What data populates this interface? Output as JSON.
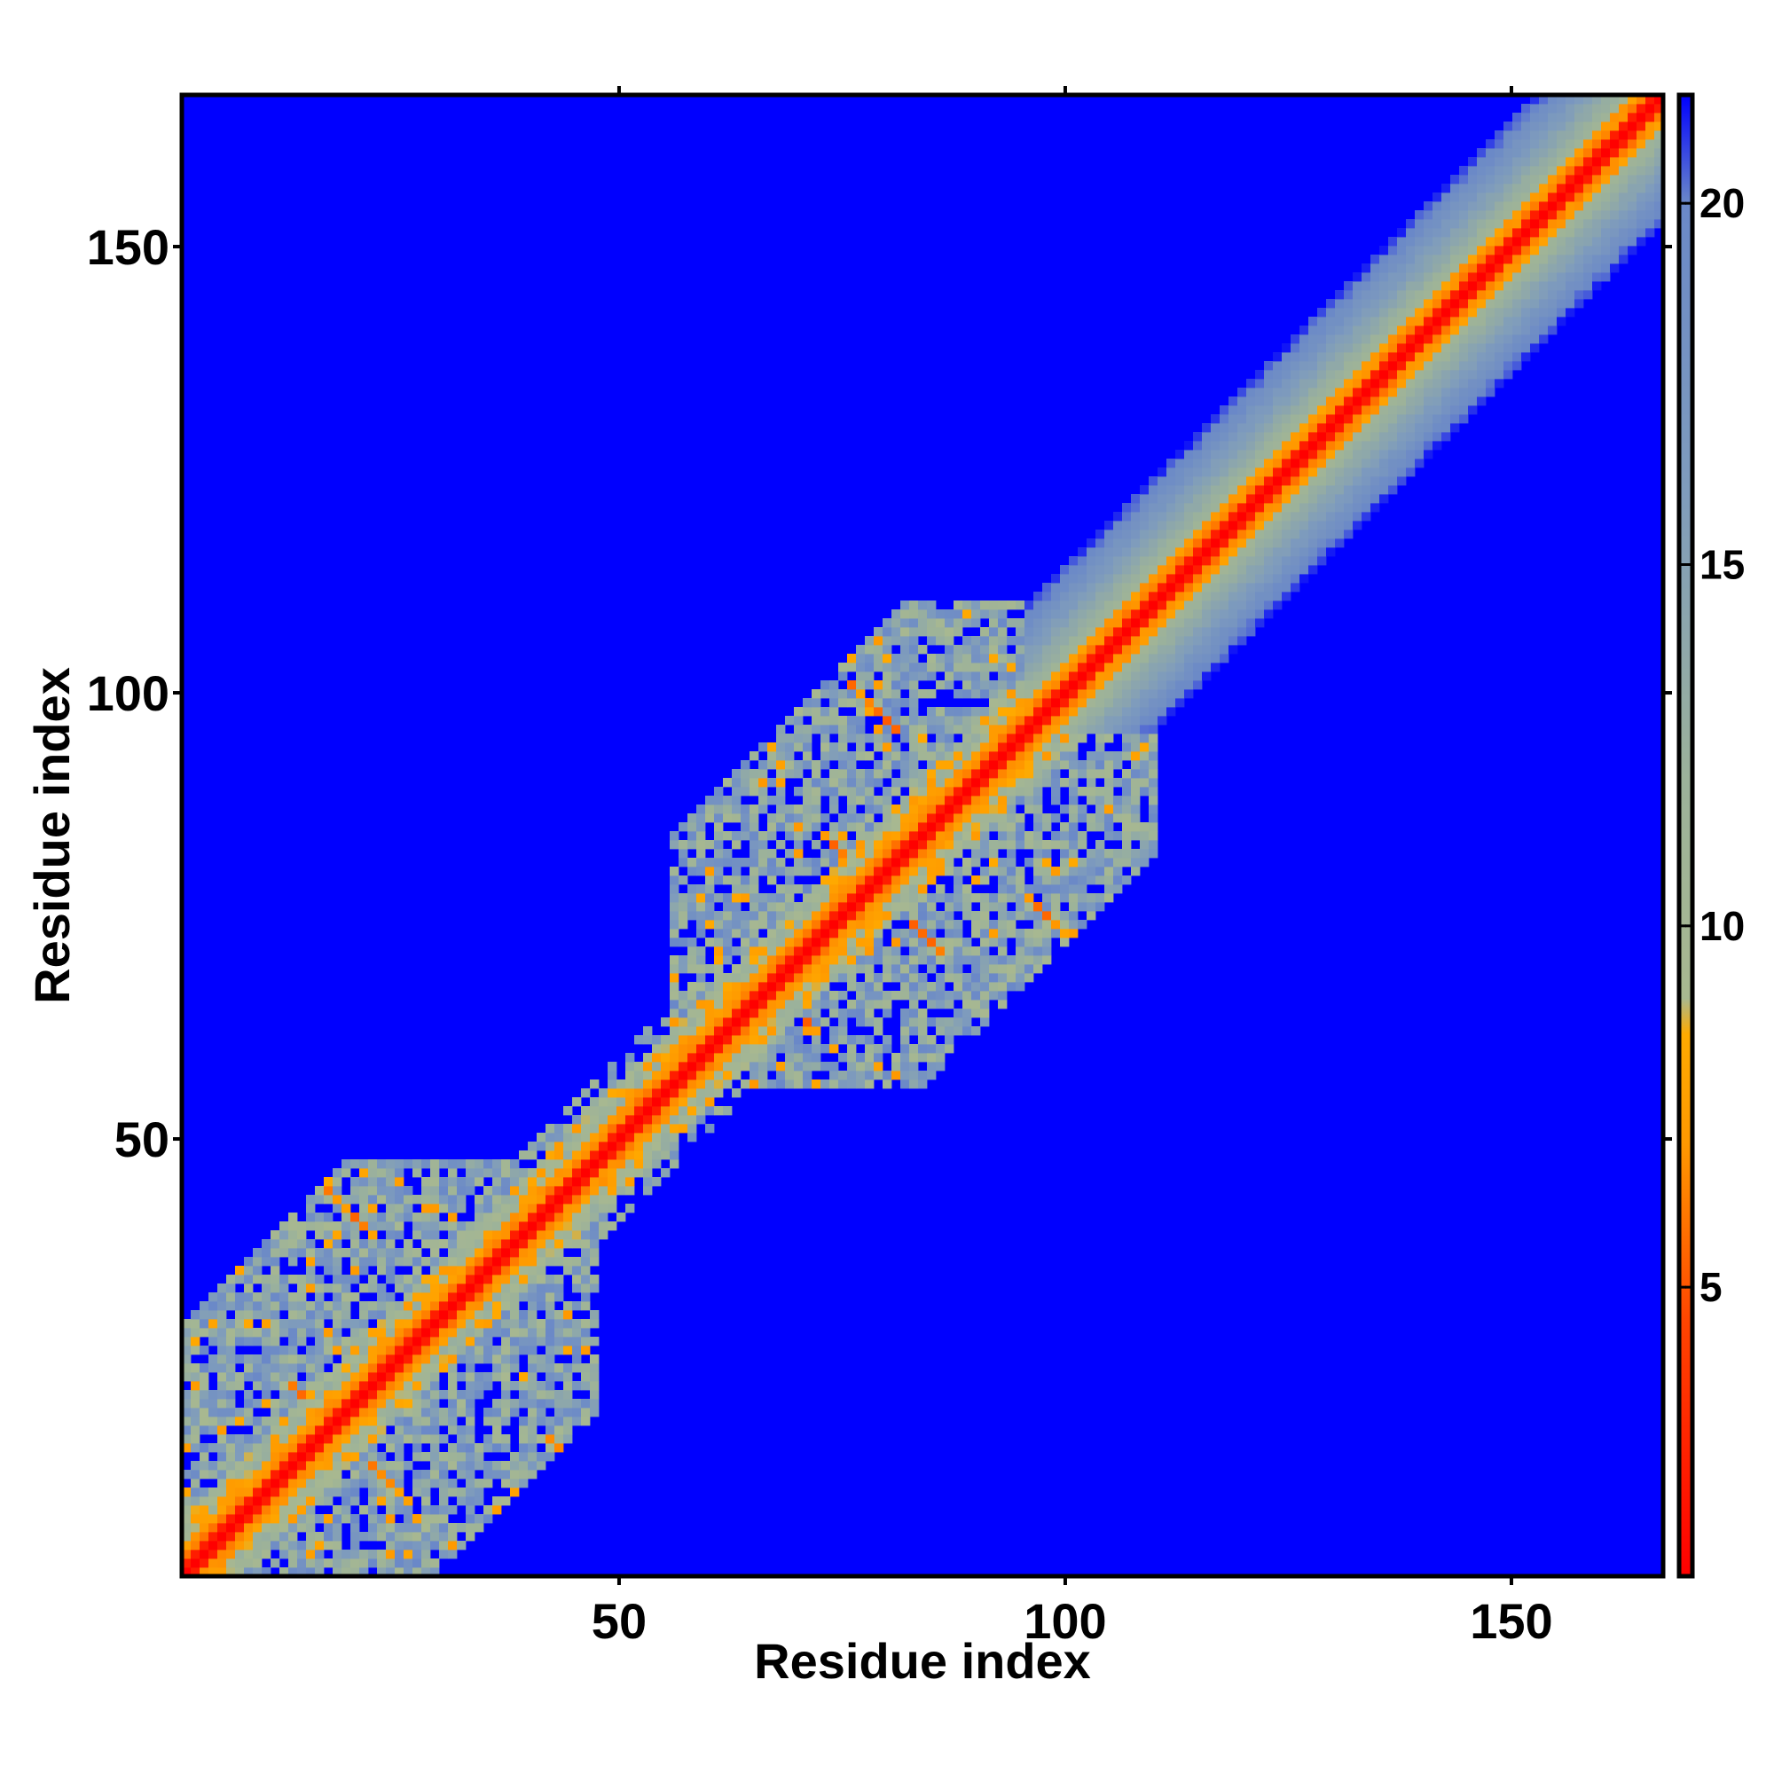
{
  "chart_data": {
    "type": "heatmap",
    "title": "",
    "xlabel": "Residue index",
    "ylabel": "Residue index",
    "n_residues": 167,
    "xlim": [
      1,
      167
    ],
    "ylim": [
      1,
      167
    ],
    "xticks": [
      50,
      100,
      150
    ],
    "yticks": [
      50,
      100,
      150
    ],
    "colorbar": {
      "range": [
        1,
        21.5
      ],
      "ticks": [
        5,
        10,
        15,
        20
      ],
      "placement": "right",
      "stops": [
        {
          "value": 1,
          "color": "#ff0000"
        },
        {
          "value": 4.5,
          "color": "#ff4400"
        },
        {
          "value": 7,
          "color": "#ff9900"
        },
        {
          "value": 8.5,
          "color": "#ffaa00"
        },
        {
          "value": 9,
          "color": "#a8b890"
        },
        {
          "value": 12,
          "color": "#9cb29a"
        },
        {
          "value": 16,
          "color": "#7f9cbc"
        },
        {
          "value": 20,
          "color": "#6a88c8"
        },
        {
          "value": 21.5,
          "color": "#0000ff"
        }
      ]
    },
    "background_color": "#0000ff",
    "domains": [
      {
        "name": "",
        "start": 1,
        "end": 47,
        "spread": 28,
        "fill": 0.8
      },
      {
        "name": "",
        "start": 56,
        "end": 110,
        "spread": 28,
        "fill": 0.78
      }
    ],
    "diagonal_band_halfwidth": 14,
    "contacts": [
      {
        "x": 17,
        "y": 44,
        "len": 6,
        "dir": "anti"
      },
      {
        "x": 42,
        "y": 16,
        "len": 6,
        "dir": "anti"
      },
      {
        "x": 13,
        "y": 22,
        "len": 5,
        "dir": "anti"
      },
      {
        "x": 22,
        "y": 13,
        "len": 5,
        "dir": "anti"
      },
      {
        "x": 76,
        "y": 101,
        "len": 6,
        "dir": "anti"
      },
      {
        "x": 97,
        "y": 76,
        "len": 6,
        "dir": "anti"
      },
      {
        "x": 73,
        "y": 84,
        "len": 4,
        "dir": "anti"
      },
      {
        "x": 83,
        "y": 74,
        "len": 4,
        "dir": "anti"
      },
      {
        "x": 70,
        "y": 64,
        "len": 3,
        "dir": "anti"
      },
      {
        "x": 64,
        "y": 70,
        "len": 3,
        "dir": "anti"
      }
    ]
  }
}
